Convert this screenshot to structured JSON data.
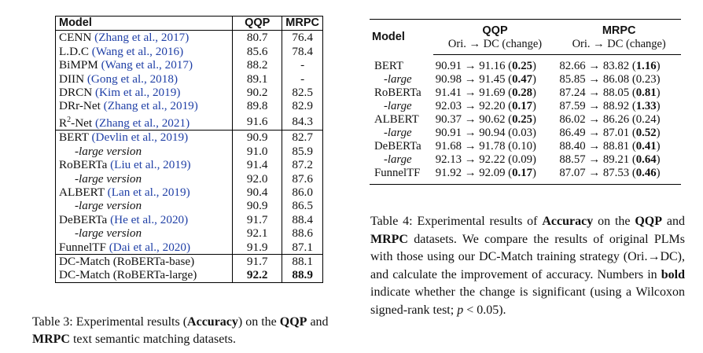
{
  "table3": {
    "headers": [
      "Model",
      "QQP",
      "MRPC"
    ],
    "rows": [
      {
        "model": "CENN",
        "cite": "(Zhang et al., 2017)",
        "qqp": "80.7",
        "mrpc": "76.4",
        "group_start": false
      },
      {
        "model": "L.D.C",
        "cite": "(Wang et al., 2016)",
        "qqp": "85.6",
        "mrpc": "78.4",
        "group_start": false
      },
      {
        "model": "BiMPM",
        "cite": "(Wang et al., 2017)",
        "qqp": "88.2",
        "mrpc": "-",
        "group_start": false
      },
      {
        "model": "DIIN",
        "cite": "(Gong et al., 2018)",
        "qqp": "89.1",
        "mrpc": "-",
        "group_start": false
      },
      {
        "model": "DRCN",
        "cite": "(Kim et al., 2019)",
        "qqp": "90.2",
        "mrpc": "82.5",
        "group_start": false
      },
      {
        "model": "DRr-Net",
        "cite": "(Zhang et al., 2019)",
        "qqp": "89.8",
        "mrpc": "82.9",
        "group_start": false
      },
      {
        "model": "R",
        "sup": "2",
        "model_tail": "-Net",
        "cite": "(Zhang et al., 2021)",
        "qqp": "91.6",
        "mrpc": "84.3",
        "group_start": false
      },
      {
        "model": "BERT",
        "cite": "(Devlin et al., 2019)",
        "qqp": "90.9",
        "mrpc": "82.7",
        "group_start": true
      },
      {
        "model": "-large version",
        "indent": true,
        "qqp": "91.0",
        "mrpc": "85.9",
        "group_start": false
      },
      {
        "model": "RoBERTa",
        "cite": "(Liu et al., 2019)",
        "qqp": "91.4",
        "mrpc": "87.2",
        "group_start": false
      },
      {
        "model": "-large version",
        "indent": true,
        "qqp": "92.0",
        "mrpc": "87.6",
        "group_start": false
      },
      {
        "model": "ALBERT",
        "cite": "(Lan et al., 2019)",
        "qqp": "90.4",
        "mrpc": "86.0",
        "group_start": false
      },
      {
        "model": "-large version",
        "indent": true,
        "qqp": "90.9",
        "mrpc": "86.5",
        "group_start": false
      },
      {
        "model": "DeBERTa",
        "cite": "(He et al., 2020)",
        "qqp": "91.7",
        "mrpc": "88.4",
        "group_start": false
      },
      {
        "model": "-large version",
        "indent": true,
        "qqp": "92.1",
        "mrpc": "88.6",
        "group_start": false
      },
      {
        "model": "FunnelTF",
        "cite": "(Dai et al., 2020)",
        "qqp": "91.9",
        "mrpc": "87.1",
        "group_start": false
      },
      {
        "model": "DC-Match (RoBERTa-base)",
        "qqp": "91.7",
        "mrpc": "88.1",
        "group_start": true
      },
      {
        "model": "DC-Match (RoBERTa-large)",
        "qqp": "92.2",
        "mrpc": "88.9",
        "bold_values": true,
        "group_start": false
      }
    ],
    "caption": {
      "pre": "Table 3: Experimental results (",
      "b1": "Accuracy",
      "mid": ") on the ",
      "b2": "QQP",
      "and": " and ",
      "b3": "MRPC",
      "post": " text semantic matching datasets."
    }
  },
  "table4": {
    "header": {
      "model": "Model",
      "group1": "QQP",
      "group2": "MRPC",
      "sub1": "Ori. → DC (change)",
      "sub2": "Ori. → DC (change)"
    },
    "rows": [
      {
        "model": "BERT",
        "qqp": "90.91 → 91.16 (",
        "qqp_chg": "0.25",
        "qqp_bold": true,
        "mrpc": "82.66 → 83.82 (",
        "mrpc_chg": "1.16",
        "mrpc_bold": true
      },
      {
        "model": "-large",
        "indent": true,
        "qqp": "90.98 → 91.45 (",
        "qqp_chg": "0.47",
        "qqp_bold": true,
        "mrpc": "85.85 → 86.08 (",
        "mrpc_chg": "0.23",
        "mrpc_bold": false
      },
      {
        "model": "RoBERTa",
        "qqp": "91.41 → 91.69 (",
        "qqp_chg": "0.28",
        "qqp_bold": true,
        "mrpc": "87.24 → 88.05 (",
        "mrpc_chg": "0.81",
        "mrpc_bold": true
      },
      {
        "model": "-large",
        "indent": true,
        "qqp": "92.03 → 92.20 (",
        "qqp_chg": "0.17",
        "qqp_bold": true,
        "mrpc": "87.59 → 88.92 (",
        "mrpc_chg": "1.33",
        "mrpc_bold": true
      },
      {
        "model": "ALBERT",
        "qqp": "90.37 → 90.62 (",
        "qqp_chg": "0.25",
        "qqp_bold": true,
        "mrpc": "86.02 → 86.26 (",
        "mrpc_chg": "0.24",
        "mrpc_bold": false
      },
      {
        "model": "-large",
        "indent": true,
        "qqp": "90.91 → 90.94 (",
        "qqp_chg": "0.03",
        "qqp_bold": false,
        "mrpc": "86.49 → 87.01 (",
        "mrpc_chg": "0.52",
        "mrpc_bold": true
      },
      {
        "model": "DeBERTa",
        "qqp": "91.68 → 91.78 (",
        "qqp_chg": "0.10",
        "qqp_bold": false,
        "mrpc": "88.40 → 88.81 (",
        "mrpc_chg": "0.41",
        "mrpc_bold": true
      },
      {
        "model": "-large",
        "indent": true,
        "qqp": "92.13 → 92.22 (",
        "qqp_chg": "0.09",
        "qqp_bold": false,
        "mrpc": "88.57 → 89.21 (",
        "mrpc_chg": "0.64",
        "mrpc_bold": true
      },
      {
        "model": "FunnelTF",
        "qqp": "91.92 → 92.09 (",
        "qqp_chg": "0.17",
        "qqp_bold": true,
        "mrpc": "87.07 → 87.53 (",
        "mrpc_chg": "0.46",
        "mrpc_bold": true
      }
    ],
    "caption": {
      "pre": "Table 4: Experimental results of ",
      "b1": "Accuracy",
      "mid1": " on the ",
      "b2": "QQP",
      "and": " and ",
      "b3": "MRPC",
      "mid2": " datasets. We compare the results of original PLMs with those using our DC-Match training strategy (Ori.→DC), and calculate the improvement of accuracy. Numbers in ",
      "b4": "bold",
      "mid3": " indicate whether the change is significant (using a Wilcoxon signed-rank test; ",
      "p": "p",
      "post": " < 0.05)."
    }
  }
}
